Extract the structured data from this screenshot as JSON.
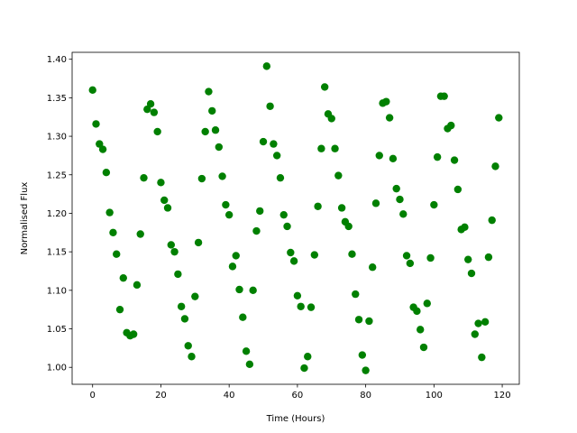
{
  "chart_data": {
    "type": "scatter",
    "xlabel": "Time (Hours)",
    "ylabel": "Normalised Flux",
    "color": "green",
    "x": [
      0,
      1,
      2,
      3,
      4,
      5,
      6,
      7,
      8,
      9,
      10,
      11,
      12,
      13,
      14,
      15,
      16,
      17,
      18,
      19,
      20,
      21,
      22,
      23,
      24,
      25,
      26,
      27,
      28,
      29,
      30,
      31,
      32,
      33,
      34,
      35,
      36,
      37,
      38,
      39,
      40,
      41,
      42,
      43,
      44,
      45,
      46,
      47,
      48,
      49,
      50,
      51,
      52,
      53,
      54,
      55,
      56,
      57,
      58,
      59,
      60,
      61,
      62,
      63,
      64,
      65,
      66,
      67,
      68,
      69,
      70,
      71,
      72,
      73,
      74,
      75,
      76,
      77,
      78,
      79,
      80,
      81,
      82,
      83,
      84,
      85,
      86,
      87,
      88,
      89,
      90,
      91,
      92,
      93,
      94,
      95,
      96,
      97,
      98,
      99,
      100,
      101,
      102,
      103,
      104,
      105,
      106,
      107,
      108,
      109,
      110,
      111,
      112,
      113,
      114,
      115,
      116,
      117,
      118,
      119
    ],
    "values": [
      1.36,
      1.316,
      1.29,
      1.283,
      1.253,
      1.201,
      1.175,
      1.147,
      1.075,
      1.116,
      1.045,
      1.041,
      1.043,
      1.107,
      1.173,
      1.246,
      1.335,
      1.342,
      1.331,
      1.306,
      1.24,
      1.217,
      1.207,
      1.159,
      1.15,
      1.121,
      1.079,
      1.063,
      1.028,
      1.014,
      1.092,
      1.162,
      1.245,
      1.306,
      1.358,
      1.333,
      1.308,
      1.286,
      1.248,
      1.211,
      1.198,
      1.131,
      1.145,
      1.101,
      1.065,
      1.021,
      1.004,
      1.1,
      1.177,
      1.203,
      1.293,
      1.391,
      1.339,
      1.29,
      1.275,
      1.246,
      1.198,
      1.183,
      1.149,
      1.138,
      1.093,
      1.079,
      0.999,
      1.014,
      1.078,
      1.146,
      1.209,
      1.284,
      1.364,
      1.329,
      1.323,
      1.284,
      1.249,
      1.207,
      1.189,
      1.183,
      1.147,
      1.095,
      1.062,
      1.016,
      0.996,
      1.06,
      1.13,
      1.213,
      1.275,
      1.343,
      1.345,
      1.324,
      1.271,
      1.232,
      1.218,
      1.199,
      1.145,
      1.135,
      1.078,
      1.073,
      1.049,
      1.026,
      1.083,
      1.142,
      1.211,
      1.273,
      1.352,
      1.352,
      1.31,
      1.314,
      1.269,
      1.231,
      1.179,
      1.182,
      1.14,
      1.122,
      1.043,
      1.057,
      1.013,
      1.059,
      1.143,
      1.191,
      1.261,
      1.324
    ],
    "xlim": [
      -6,
      125
    ],
    "xticks": [
      0,
      20,
      40,
      60,
      80,
      100,
      120
    ],
    "ylim": [
      0.978,
      1.409
    ],
    "yticks": [
      {
        "value": 1.0,
        "label": "1.00"
      },
      {
        "value": 1.05,
        "label": "1.05"
      },
      {
        "value": 1.1,
        "label": "1.10"
      },
      {
        "value": 1.15,
        "label": "1.15"
      },
      {
        "value": 1.2,
        "label": "1.20"
      },
      {
        "value": 1.25,
        "label": "1.25"
      },
      {
        "value": 1.3,
        "label": "1.30"
      },
      {
        "value": 1.35,
        "label": "1.35"
      },
      {
        "value": 1.4,
        "label": "1.40"
      }
    ]
  }
}
